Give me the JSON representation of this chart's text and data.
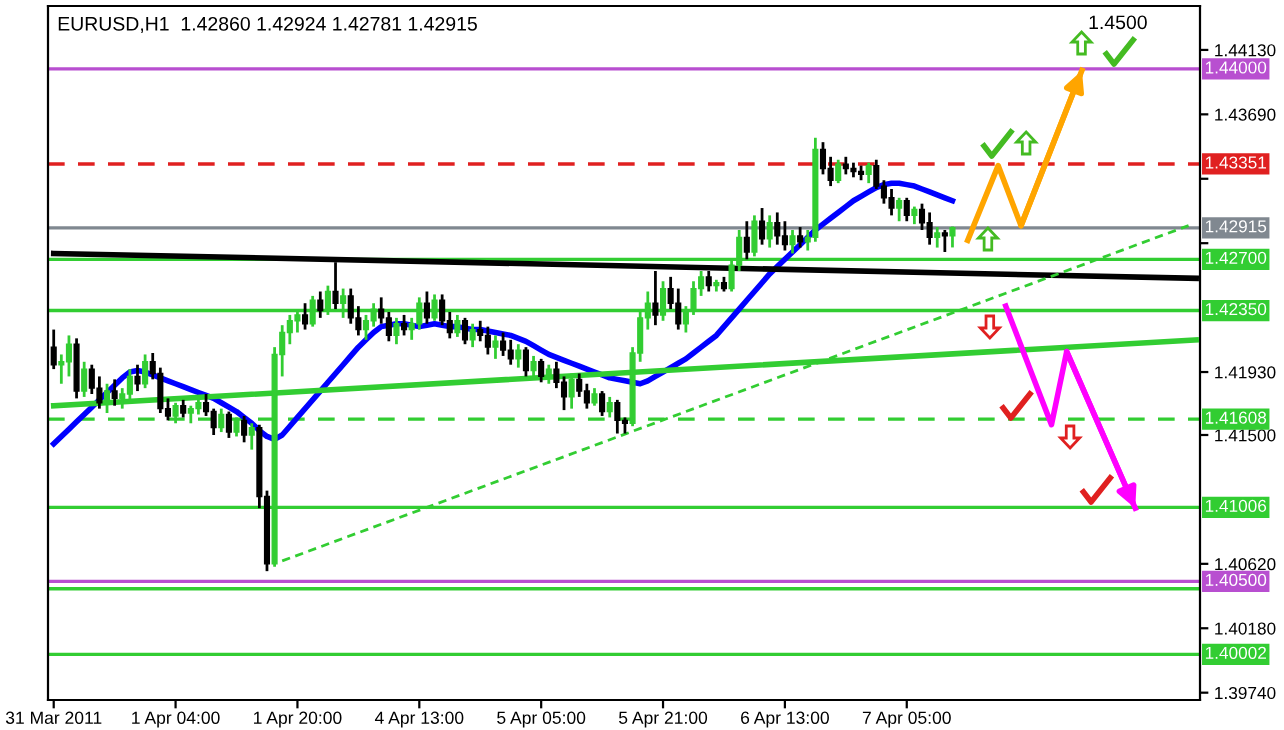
{
  "chart_data": {
    "type": "candlestick",
    "title": "EURUSD,H1  1.42860 1.42924 1.42781 1.42915",
    "categories": [
      "31 Mar 2011",
      null,
      null,
      null,
      null,
      null,
      null,
      null,
      null,
      null,
      null,
      null,
      null,
      null,
      null,
      null,
      "1 Apr 04:00",
      null,
      null,
      null,
      null,
      null,
      null,
      null,
      null,
      null,
      null,
      null,
      null,
      null,
      null,
      null,
      "1 Apr 20:00",
      null,
      null,
      null,
      null,
      null,
      null,
      null,
      null,
      null,
      null,
      null,
      null,
      null,
      null,
      null,
      "4 Apr 13:00",
      null,
      null,
      null,
      null,
      null,
      null,
      null,
      null,
      null,
      null,
      null,
      null,
      null,
      null,
      null,
      "5 Apr 05:00",
      null,
      null,
      null,
      null,
      null,
      null,
      null,
      null,
      null,
      null,
      null,
      null,
      null,
      null,
      null,
      "5 Apr 21:00",
      null,
      null,
      null,
      null,
      null,
      null,
      null,
      null,
      null,
      null,
      null,
      null,
      null,
      null,
      null,
      "6 Apr 13:00",
      null,
      null,
      null,
      null,
      null,
      null,
      null,
      null,
      null,
      null,
      null,
      null,
      null,
      null,
      null,
      "7 Apr 05:00",
      null,
      null,
      null,
      null,
      null,
      null,
      null,
      null,
      null,
      null,
      null,
      null,
      null,
      null,
      null,
      null,
      null,
      null,
      null,
      null,
      null,
      null,
      null,
      null,
      null,
      null,
      null,
      null,
      null,
      null,
      null,
      null,
      null,
      null,
      null,
      null,
      null,
      null
    ],
    "ohlc": [
      [
        1.421,
        1.4222,
        1.4195,
        1.4198
      ],
      [
        1.4198,
        1.4205,
        1.4185,
        1.42
      ],
      [
        1.42,
        1.4218,
        1.419,
        1.4212
      ],
      [
        1.4212,
        1.4216,
        1.4175,
        1.418
      ],
      [
        1.418,
        1.42,
        1.4176,
        1.4195
      ],
      [
        1.4195,
        1.4198,
        1.4178,
        1.4182
      ],
      [
        1.4182,
        1.419,
        1.4168,
        1.4172
      ],
      [
        1.4172,
        1.4185,
        1.4165,
        1.418
      ],
      [
        1.418,
        1.4188,
        1.417,
        1.4175
      ],
      [
        1.4175,
        1.4182,
        1.4168,
        1.4178
      ],
      [
        1.4178,
        1.4195,
        1.4174,
        1.419
      ],
      [
        1.419,
        1.4198,
        1.418,
        1.4185
      ],
      [
        1.4185,
        1.4205,
        1.4182,
        1.42
      ],
      [
        1.42,
        1.4206,
        1.4188,
        1.4192
      ],
      [
        1.4192,
        1.4196,
        1.4165,
        1.4168
      ],
      [
        1.4168,
        1.4175,
        1.416,
        1.4163
      ],
      [
        1.4163,
        1.4172,
        1.4158,
        1.417
      ],
      [
        1.417,
        1.4174,
        1.4162,
        1.4165
      ],
      [
        1.4165,
        1.417,
        1.4158,
        1.4168
      ],
      [
        1.4168,
        1.4176,
        1.4164,
        1.4172
      ],
      [
        1.4172,
        1.4178,
        1.4163,
        1.4166
      ],
      [
        1.4166,
        1.4168,
        1.415,
        1.4155
      ],
      [
        1.4155,
        1.4168,
        1.4152,
        1.4164
      ],
      [
        1.4164,
        1.4166,
        1.4148,
        1.4152
      ],
      [
        1.4152,
        1.4162,
        1.4149,
        1.416
      ],
      [
        1.416,
        1.4163,
        1.4145,
        1.415
      ],
      [
        1.415,
        1.4158,
        1.414,
        1.4155
      ],
      [
        1.4155,
        1.4157,
        1.41,
        1.4108
      ],
      [
        1.4108,
        1.4112,
        1.4057,
        1.4062
      ],
      [
        1.4062,
        1.421,
        1.406,
        1.4205
      ],
      [
        1.4205,
        1.4225,
        1.419,
        1.422
      ],
      [
        1.422,
        1.4232,
        1.4212,
        1.4228
      ],
      [
        1.4228,
        1.4236,
        1.422,
        1.4232
      ],
      [
        1.4232,
        1.424,
        1.4222,
        1.4226
      ],
      [
        1.4226,
        1.4245,
        1.4224,
        1.4242
      ],
      [
        1.4242,
        1.4248,
        1.423,
        1.4235
      ],
      [
        1.4235,
        1.4252,
        1.4232,
        1.4248
      ],
      [
        1.4248,
        1.4268,
        1.4236,
        1.424
      ],
      [
        1.424,
        1.425,
        1.423,
        1.4245
      ],
      [
        1.4245,
        1.425,
        1.4226,
        1.423
      ],
      [
        1.423,
        1.4238,
        1.4218,
        1.4222
      ],
      [
        1.4222,
        1.4232,
        1.4215,
        1.4228
      ],
      [
        1.4228,
        1.424,
        1.4224,
        1.4236
      ],
      [
        1.4236,
        1.4244,
        1.4226,
        1.423
      ],
      [
        1.423,
        1.4234,
        1.4214,
        1.4218
      ],
      [
        1.4218,
        1.423,
        1.4212,
        1.4226
      ],
      [
        1.4226,
        1.4232,
        1.4218,
        1.4222
      ],
      [
        1.4222,
        1.423,
        1.4215,
        1.4226
      ],
      [
        1.4226,
        1.4244,
        1.4222,
        1.424
      ],
      [
        1.424,
        1.4248,
        1.4226,
        1.423
      ],
      [
        1.423,
        1.4246,
        1.4228,
        1.4242
      ],
      [
        1.4242,
        1.4246,
        1.4225,
        1.4228
      ],
      [
        1.4228,
        1.4234,
        1.4216,
        1.422
      ],
      [
        1.422,
        1.4232,
        1.4217,
        1.4228
      ],
      [
        1.4228,
        1.423,
        1.4212,
        1.4215
      ],
      [
        1.4215,
        1.4226,
        1.421,
        1.4222
      ],
      [
        1.4222,
        1.4228,
        1.4214,
        1.4218
      ],
      [
        1.4218,
        1.4224,
        1.4205,
        1.421
      ],
      [
        1.421,
        1.4218,
        1.4202,
        1.4214
      ],
      [
        1.4214,
        1.422,
        1.4204,
        1.4208
      ],
      [
        1.4208,
        1.4215,
        1.4198,
        1.4202
      ],
      [
        1.4202,
        1.4212,
        1.4196,
        1.4208
      ],
      [
        1.4208,
        1.421,
        1.419,
        1.4194
      ],
      [
        1.4194,
        1.4204,
        1.419,
        1.42
      ],
      [
        1.42,
        1.4202,
        1.4186,
        1.419
      ],
      [
        1.419,
        1.4198,
        1.4185,
        1.4195
      ],
      [
        1.4195,
        1.42,
        1.4182,
        1.4186
      ],
      [
        1.4186,
        1.419,
        1.4167,
        1.4176
      ],
      [
        1.4176,
        1.4192,
        1.4168,
        1.4188
      ],
      [
        1.4188,
        1.4192,
        1.4176,
        1.418
      ],
      [
        1.418,
        1.4185,
        1.4168,
        1.4172
      ],
      [
        1.4172,
        1.4182,
        1.417,
        1.4178
      ],
      [
        1.4178,
        1.418,
        1.4163,
        1.4166
      ],
      [
        1.4166,
        1.4176,
        1.4162,
        1.4172
      ],
      [
        1.4172,
        1.4174,
        1.4151,
        1.416
      ],
      [
        1.416,
        1.4162,
        1.4151,
        1.4158
      ],
      [
        1.4158,
        1.421,
        1.4156,
        1.4206
      ],
      [
        1.4206,
        1.4235,
        1.42,
        1.423
      ],
      [
        1.423,
        1.4248,
        1.4222,
        1.424
      ],
      [
        1.424,
        1.4262,
        1.4225,
        1.4232
      ],
      [
        1.4232,
        1.4255,
        1.4228,
        1.425
      ],
      [
        1.425,
        1.4258,
        1.4236,
        1.424
      ],
      [
        1.424,
        1.425,
        1.4222,
        1.4226
      ],
      [
        1.4226,
        1.4238,
        1.422,
        1.4235
      ],
      [
        1.4235,
        1.4255,
        1.4232,
        1.425
      ],
      [
        1.425,
        1.4262,
        1.4245,
        1.4258
      ],
      [
        1.4258,
        1.4262,
        1.4248,
        1.4252
      ],
      [
        1.4252,
        1.4256,
        1.4248,
        1.4254
      ],
      [
        1.4254,
        1.4258,
        1.4248,
        1.425
      ],
      [
        1.425,
        1.427,
        1.4248,
        1.4266
      ],
      [
        1.4266,
        1.429,
        1.4262,
        1.4285
      ],
      [
        1.4285,
        1.4296,
        1.427,
        1.4275
      ],
      [
        1.4275,
        1.43,
        1.4272,
        1.4296
      ],
      [
        1.4296,
        1.4305,
        1.428,
        1.4284
      ],
      [
        1.4284,
        1.43,
        1.4278,
        1.4295
      ],
      [
        1.4295,
        1.4302,
        1.428,
        1.4286
      ],
      [
        1.4286,
        1.4296,
        1.4276,
        1.428
      ],
      [
        1.428,
        1.429,
        1.4274,
        1.4286
      ],
      [
        1.4286,
        1.4292,
        1.4278,
        1.4282
      ],
      [
        1.4282,
        1.429,
        1.4276,
        1.4285
      ],
      [
        1.4285,
        1.4353,
        1.4282,
        1.4345
      ],
      [
        1.4345,
        1.435,
        1.4328,
        1.4332
      ],
      [
        1.4332,
        1.434,
        1.432,
        1.4324
      ],
      [
        1.4324,
        1.4338,
        1.4322,
        1.4335
      ],
      [
        1.4335,
        1.434,
        1.4328,
        1.4332
      ],
      [
        1.4332,
        1.4336,
        1.4326,
        1.433
      ],
      [
        1.433,
        1.4334,
        1.4324,
        1.4328
      ],
      [
        1.4328,
        1.4336,
        1.4322,
        1.4334
      ],
      [
        1.4334,
        1.4338,
        1.4318,
        1.432
      ],
      [
        1.432,
        1.4324,
        1.4308,
        1.4312
      ],
      [
        1.4312,
        1.4318,
        1.43,
        1.4305
      ],
      [
        1.4305,
        1.4312,
        1.4296,
        1.431
      ],
      [
        1.431,
        1.4312,
        1.4296,
        1.43
      ],
      [
        1.43,
        1.4306,
        1.4294,
        1.4304
      ],
      [
        1.4304,
        1.4308,
        1.429,
        1.4295
      ],
      [
        1.4295,
        1.4302,
        1.428,
        1.4285
      ],
      [
        1.4285,
        1.4292,
        1.4278,
        1.4288
      ],
      [
        1.4288,
        1.429,
        1.4275,
        1.4286
      ],
      [
        1.4286,
        1.42924,
        1.42781,
        1.42915
      ],
      null,
      null,
      null,
      null,
      null,
      null,
      null,
      null,
      null,
      null,
      null,
      null,
      null,
      null,
      null,
      null,
      null,
      null,
      null,
      null,
      null,
      null,
      null,
      null,
      null,
      null,
      null,
      null,
      null,
      null,
      null,
      null
    ],
    "series": [
      {
        "type": "line",
        "color": "#0000ff",
        "values": [
          1.4144,
          1.4149,
          1.4154,
          1.4159,
          1.4164,
          1.4169,
          1.4174,
          1.4179,
          1.4184,
          1.4189,
          1.4193,
          1.4194,
          1.4193,
          1.4191,
          1.4189,
          1.4187,
          1.4185,
          1.4183,
          1.4181,
          1.4179,
          1.4177,
          1.4175,
          1.4172,
          1.4169,
          1.4166,
          1.4162,
          1.4158,
          1.4153,
          1.4149,
          1.4147,
          1.415,
          1.4156,
          1.4162,
          1.4168,
          1.4174,
          1.418,
          1.4186,
          1.4192,
          1.4198,
          1.4204,
          1.421,
          1.4215,
          1.422,
          1.4224,
          1.4225,
          1.4226,
          1.4226,
          1.4225,
          1.4224,
          1.4225,
          1.4226,
          1.4225,
          1.4224,
          1.4224,
          1.4223,
          1.4222,
          1.4222,
          1.4221,
          1.422,
          1.4219,
          1.4218,
          1.4216,
          1.4214,
          1.4211,
          1.4208,
          1.4205,
          1.4203,
          1.4201,
          1.4199,
          1.4197,
          1.4195,
          1.4193,
          1.4191,
          1.4189,
          1.4188,
          1.4187,
          1.4186,
          1.4185,
          1.4187,
          1.419,
          1.4193,
          1.4196,
          1.4199,
          1.4202,
          1.4206,
          1.421,
          1.4214,
          1.4218,
          1.4224,
          1.423,
          1.4236,
          1.4242,
          1.4248,
          1.4254,
          1.426,
          1.4265,
          1.427,
          1.4275,
          1.428,
          1.4285,
          1.429,
          1.4294,
          1.4298,
          1.4302,
          1.4306,
          1.431,
          1.4313,
          1.4316,
          1.4319,
          1.4321,
          1.4322,
          1.4322,
          1.4321,
          1.432,
          1.4318,
          1.4316,
          1.4314,
          1.4312,
          1.431,
          null,
          null,
          null,
          null,
          null,
          null,
          null,
          null,
          null,
          null,
          null,
          null,
          null,
          null,
          null,
          null,
          null,
          null,
          null,
          null,
          null,
          null,
          null,
          null,
          null,
          null,
          null,
          null,
          null,
          null,
          null,
          null
        ]
      },
      {
        "type": "line",
        "color": "#000000",
        "values": [
          1.4274,
          null,
          null,
          null,
          null,
          null,
          null,
          null,
          null,
          null,
          null,
          null,
          null,
          null,
          null,
          null,
          null,
          null,
          null,
          null,
          null,
          null,
          null,
          null,
          null,
          null,
          null,
          null,
          null,
          null,
          null,
          null,
          null,
          null,
          null,
          null,
          null,
          null,
          null,
          null,
          null,
          null,
          null,
          null,
          null,
          null,
          null,
          null,
          null,
          null,
          null,
          null,
          null,
          null,
          null,
          null,
          null,
          null,
          null,
          null,
          null,
          null,
          null,
          null,
          null,
          null,
          null,
          null,
          null,
          null,
          null,
          null,
          null,
          null,
          null,
          null,
          null,
          null,
          null,
          null,
          null,
          null,
          null,
          null,
          null,
          null,
          null,
          null,
          null,
          null,
          null,
          null,
          null,
          null,
          null,
          null,
          null,
          null,
          null,
          null,
          null,
          null,
          null,
          null,
          null,
          null,
          null,
          null,
          null,
          null,
          null,
          null,
          null,
          null,
          null,
          null,
          null,
          null,
          null,
          null,
          null,
          null,
          null,
          null,
          null,
          null,
          null,
          null,
          null,
          null,
          null,
          null,
          null,
          null,
          null,
          null,
          null,
          null,
          null,
          null,
          null,
          null,
          null,
          null,
          null,
          null,
          null,
          null,
          null,
          null,
          1.4257
        ]
      },
      {
        "type": "line",
        "color": "#32cd32",
        "values": [
          1.417,
          null,
          null,
          null,
          null,
          null,
          null,
          null,
          null,
          null,
          null,
          null,
          null,
          null,
          null,
          null,
          null,
          null,
          null,
          null,
          null,
          null,
          null,
          null,
          null,
          null,
          null,
          null,
          null,
          null,
          null,
          null,
          null,
          null,
          null,
          null,
          null,
          null,
          null,
          null,
          null,
          null,
          null,
          null,
          null,
          null,
          null,
          null,
          null,
          null,
          null,
          null,
          null,
          null,
          null,
          null,
          null,
          null,
          null,
          null,
          null,
          null,
          null,
          null,
          null,
          null,
          null,
          null,
          null,
          null,
          null,
          null,
          null,
          null,
          null,
          null,
          null,
          null,
          null,
          null,
          null,
          null,
          null,
          null,
          null,
          null,
          null,
          null,
          null,
          null,
          null,
          null,
          null,
          null,
          null,
          null,
          null,
          null,
          null,
          null,
          null,
          null,
          null,
          null,
          null,
          null,
          null,
          null,
          null,
          null,
          null,
          null,
          null,
          null,
          null,
          null,
          null,
          null,
          null,
          null,
          null,
          null,
          null,
          null,
          null,
          null,
          null,
          null,
          null,
          null,
          null,
          null,
          null,
          null,
          null,
          null,
          null,
          null,
          null,
          null,
          null,
          null,
          null,
          null,
          null,
          null,
          null,
          null,
          null,
          null,
          1.4215
        ]
      },
      {
        "type": "line",
        "color": "#32cd32",
        "line_style": "dashed",
        "values": [
          null,
          null,
          null,
          null,
          null,
          null,
          null,
          null,
          null,
          null,
          null,
          null,
          null,
          null,
          null,
          null,
          null,
          null,
          null,
          null,
          null,
          null,
          null,
          null,
          null,
          null,
          null,
          null,
          null,
          null,
          1.4064,
          null,
          null,
          null,
          null,
          null,
          null,
          null,
          null,
          null,
          null,
          null,
          null,
          null,
          null,
          null,
          null,
          null,
          null,
          null,
          null,
          null,
          null,
          null,
          null,
          null,
          null,
          null,
          null,
          null,
          null,
          null,
          null,
          null,
          null,
          null,
          null,
          null,
          null,
          null,
          null,
          null,
          null,
          null,
          null,
          null,
          null,
          null,
          null,
          null,
          null,
          null,
          null,
          null,
          null,
          null,
          null,
          null,
          null,
          null,
          null,
          null,
          null,
          null,
          null,
          null,
          null,
          null,
          null,
          null,
          null,
          null,
          null,
          null,
          null,
          null,
          null,
          null,
          null,
          null,
          null,
          null,
          null,
          null,
          null,
          null,
          null,
          null,
          null,
          null,
          null,
          null,
          null,
          null,
          null,
          null,
          null,
          null,
          null,
          null,
          null,
          null,
          null,
          null,
          null,
          null,
          null,
          null,
          null,
          null,
          null,
          null,
          null,
          null,
          null,
          null,
          null,
          null,
          null,
          1.4293,
          null
        ]
      },
      {
        "type": "line",
        "color": "#ffa500",
        "values": [
          null,
          null,
          null,
          null,
          null,
          null,
          null,
          null,
          null,
          null,
          null,
          null,
          null,
          null,
          null,
          null,
          null,
          null,
          null,
          null,
          null,
          null,
          null,
          null,
          null,
          null,
          null,
          null,
          null,
          null,
          null,
          null,
          null,
          null,
          null,
          null,
          null,
          null,
          null,
          null,
          null,
          null,
          null,
          null,
          null,
          null,
          null,
          null,
          null,
          null,
          null,
          null,
          null,
          null,
          null,
          null,
          null,
          null,
          null,
          null,
          null,
          null,
          null,
          null,
          null,
          null,
          null,
          null,
          null,
          null,
          null,
          null,
          null,
          null,
          null,
          null,
          null,
          null,
          null,
          null,
          null,
          null,
          null,
          null,
          null,
          null,
          null,
          null,
          null,
          null,
          null,
          null,
          null,
          null,
          null,
          null,
          null,
          null,
          null,
          null,
          null,
          null,
          null,
          null,
          null,
          null,
          null,
          null,
          null,
          null,
          null,
          null,
          null,
          null,
          null,
          null,
          null,
          null,
          null,
          null,
          1.4283,
          null,
          null,
          null,
          1.4334,
          null,
          null,
          1.4293,
          null,
          null,
          null,
          null,
          null,
          null,
          null,
          1.4399,
          null,
          null,
          null,
          null,
          null,
          null,
          null,
          null,
          null,
          null,
          null,
          null,
          null,
          null,
          null
        ]
      },
      {
        "type": "line",
        "color": "#ff00ff",
        "values": [
          null,
          null,
          null,
          null,
          null,
          null,
          null,
          null,
          null,
          null,
          null,
          null,
          null,
          null,
          null,
          null,
          null,
          null,
          null,
          null,
          null,
          null,
          null,
          null,
          null,
          null,
          null,
          null,
          null,
          null,
          null,
          null,
          null,
          null,
          null,
          null,
          null,
          null,
          null,
          null,
          null,
          null,
          null,
          null,
          null,
          null,
          null,
          null,
          null,
          null,
          null,
          null,
          null,
          null,
          null,
          null,
          null,
          null,
          null,
          null,
          null,
          null,
          null,
          null,
          null,
          null,
          null,
          null,
          null,
          null,
          null,
          null,
          null,
          null,
          null,
          null,
          null,
          null,
          null,
          null,
          null,
          null,
          null,
          null,
          null,
          null,
          null,
          null,
          null,
          null,
          null,
          null,
          null,
          null,
          null,
          null,
          null,
          null,
          null,
          null,
          null,
          null,
          null,
          null,
          null,
          null,
          null,
          null,
          null,
          null,
          null,
          null,
          null,
          null,
          null,
          null,
          null,
          null,
          null,
          null,
          null,
          null,
          null,
          null,
          null,
          1.4238,
          null,
          null,
          null,
          null,
          null,
          1.4157,
          null,
          1.4207,
          null,
          null,
          null,
          null,
          null,
          null,
          null,
          null,
          1.41,
          null,
          null,
          null,
          null,
          null,
          null,
          null,
          null
        ]
      }
    ],
    "ylim": [
      1.3969,
      1.4443
    ],
    "yticks": [
      {
        "value": 1.4413,
        "label": "1.44130"
      },
      {
        "value": 1.4369,
        "label": "1.43690"
      },
      {
        "value": 1.4325,
        "label": null
      },
      {
        "value": 1.4281,
        "label": null
      },
      {
        "value": 1.4193,
        "label": "1.41930"
      },
      {
        "value": 1.415,
        "label": "1.41500"
      },
      {
        "value": 1.4062,
        "label": "1.40620"
      },
      {
        "value": 1.4018,
        "label": "1.40180"
      },
      {
        "value": 1.3974,
        "label": "1.39740"
      }
    ],
    "ref_lines": [
      {
        "axis": "y",
        "value": 1.44,
        "label": "1.44000",
        "color": "#b84fd0"
      },
      {
        "axis": "y",
        "value": 1.43351,
        "label": "1.43351",
        "color": "#e02020",
        "line_style": "dashed"
      },
      {
        "axis": "y",
        "value": 1.42915,
        "label": "1.42915",
        "color": "#808890"
      },
      {
        "axis": "y",
        "value": 1.427,
        "label": "1.42700",
        "color": "#32cd32"
      },
      {
        "axis": "y",
        "value": 1.4235,
        "label": "1.42350",
        "color": "#32cd32"
      },
      {
        "axis": "y",
        "value": 1.41608,
        "label": "1.41608",
        "color": "#32cd32",
        "line_style": "dashed"
      },
      {
        "axis": "y",
        "value": 1.41006,
        "label": "1.41006",
        "color": "#32cd32"
      },
      {
        "axis": "y",
        "value": 1.405,
        "label": "1.40500",
        "color": "#b84fd0"
      },
      {
        "axis": "y",
        "value": 1.4045,
        "label": null,
        "color": "#32cd32"
      },
      {
        "axis": "y",
        "value": 1.40002,
        "label": "1.40002",
        "color": "#32cd32"
      }
    ],
    "annotations": [
      "1.4500"
    ],
    "grid": false,
    "legend": false
  }
}
